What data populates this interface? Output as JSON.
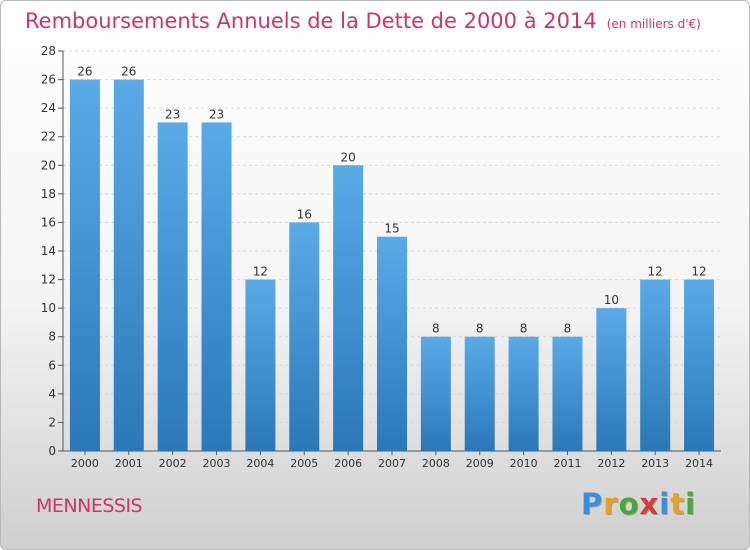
{
  "chart_data": {
    "type": "bar",
    "title": "Remboursements Annuels de la Dette de 2000 à 2014",
    "subtitle": "(en milliers d'€)",
    "categories": [
      "2000",
      "2001",
      "2002",
      "2003",
      "2004",
      "2005",
      "2006",
      "2007",
      "2008",
      "2009",
      "2010",
      "2011",
      "2012",
      "2013",
      "2014"
    ],
    "values": [
      26,
      26,
      23,
      23,
      12,
      16,
      20,
      15,
      8,
      8,
      8,
      8,
      10,
      12,
      12
    ],
    "ylim": [
      0,
      28
    ],
    "yticks": [
      0,
      2,
      4,
      6,
      8,
      10,
      12,
      14,
      16,
      18,
      20,
      22,
      24,
      26,
      28
    ],
    "grid": true,
    "xlabel": "",
    "ylabel": ""
  },
  "footer": {
    "commune": "MENNESSIS",
    "logo_letters": [
      "P",
      "r",
      "o",
      "x",
      "i",
      "t",
      "i"
    ],
    "logo_colors": [
      "#3a8fd6",
      "#e8a020",
      "#4aa83a",
      "#d43a3a",
      "#3a8fd6",
      "#e8a020",
      "#4aa83a"
    ]
  },
  "colors": {
    "bar_top": "#5aaae8",
    "bar_bottom": "#2a78b8",
    "title": "#c8366a"
  }
}
